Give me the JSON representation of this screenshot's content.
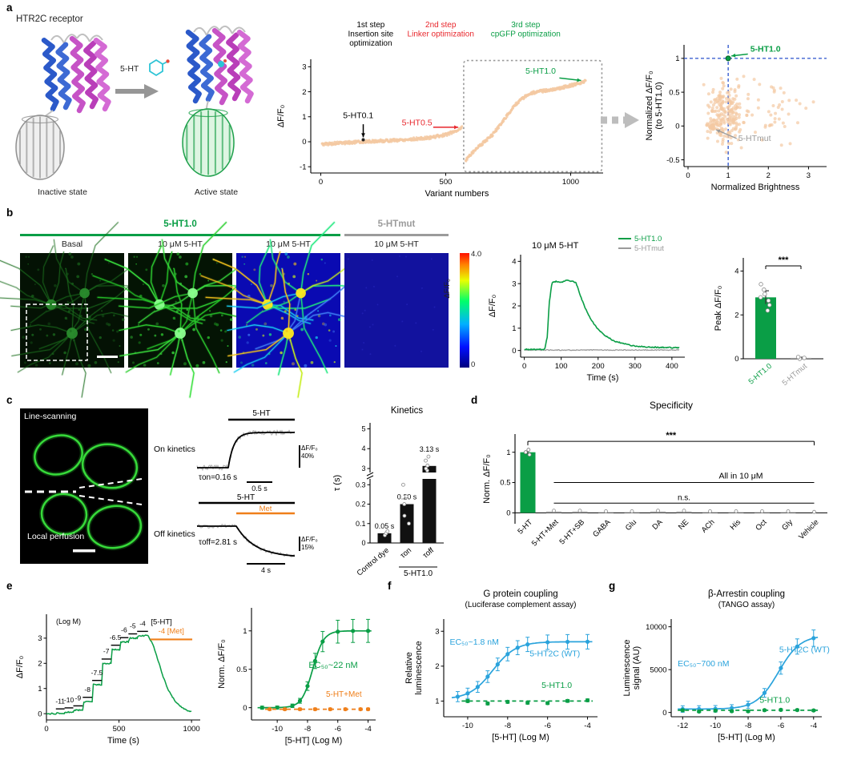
{
  "figure": {
    "panel_letters": {
      "a": "a",
      "b": "b",
      "c": "c",
      "d": "d",
      "e": "e",
      "f": "f",
      "g": "g"
    }
  },
  "panel_a": {
    "receptor_title": "HTR2C receptor",
    "ligand_label": "5-HT",
    "inactive_label": "Inactive state",
    "active_label": "Active state"
  },
  "panel_b": {
    "sensor_label": "5-HT1.0",
    "mut_label": "5-HTmut",
    "image_labels": [
      "Basal",
      "10 μM 5-HT",
      "10 μM 5-HT",
      "10 μM 5-HT"
    ],
    "colorbar": {
      "label": "ΔF/F₀",
      "max": "4.0",
      "min": "0"
    }
  },
  "panel_c": {
    "image_label_top": "Line-scanning",
    "image_label_bottom": "Local perfusion",
    "on_label": "On kinetics",
    "off_label": "Off kinetics",
    "on_bar_label": "5-HT",
    "off_bar_label": "5-HT",
    "met_bar_label": "Met",
    "tau_on": "τon=0.16 s",
    "tau_off": "τoff=2.81 s",
    "on_scale_v1": "ΔF/F₀",
    "on_scale_v2": "40%",
    "on_scale_h": "0.5 s",
    "off_scale_v1": "ΔF/F₀",
    "off_scale_v2": "15%",
    "off_scale_h": "4 s"
  },
  "chart_data": [
    {
      "id": "variant_screen",
      "type": "scatter",
      "xlabel": "Variant numbers",
      "ylabel": "ΔF/F₀",
      "xlim": [
        -40,
        1130
      ],
      "ylim": [
        -1.25,
        3.3
      ],
      "xticks": [
        0,
        500,
        1000
      ],
      "yticks": [
        -1,
        0,
        1,
        2,
        3
      ],
      "point_color": "#f3c9a2",
      "steps": [
        {
          "lines": [
            "1st step",
            "Insertion site",
            "optimization"
          ],
          "color": "#000000",
          "x": 200
        },
        {
          "lines": [
            "2nd step",
            "Linker optimization"
          ],
          "color": "#e8262c",
          "x": 480
        },
        {
          "lines": [
            "3rd step",
            "cpGFP optimization"
          ],
          "color": "#0a9e46",
          "x": 820
        }
      ],
      "segment1": [
        [
          5,
          -0.1
        ],
        [
          80,
          -0.05
        ],
        [
          170,
          0.0
        ],
        [
          300,
          0.06
        ],
        [
          420,
          0.14
        ],
        [
          500,
          0.28
        ],
        [
          545,
          0.45
        ],
        [
          565,
          0.58
        ]
      ],
      "segment2": [
        [
          580,
          -0.75
        ],
        [
          600,
          -0.5
        ],
        [
          625,
          -0.25
        ],
        [
          655,
          0.0
        ],
        [
          685,
          0.25
        ],
        [
          720,
          0.7
        ],
        [
          760,
          1.25
        ],
        [
          800,
          1.7
        ],
        [
          845,
          1.95
        ],
        [
          900,
          2.05
        ],
        [
          960,
          2.15
        ],
        [
          1020,
          2.3
        ],
        [
          1060,
          2.42
        ]
      ],
      "n1": 300,
      "n2": 320,
      "annotations": [
        {
          "text": "5-HT0.1",
          "color": "#000000",
          "tx": 150,
          "ty": 0.95,
          "arrow": [
            [
              170,
              0.7
            ],
            [
              170,
              0.18
            ]
          ],
          "dot": [
            170,
            0.08
          ]
        },
        {
          "text": "5-HT0.5",
          "color": "#e8262c",
          "tx": 385,
          "ty": 0.66,
          "arrow": [
            [
              450,
              0.58
            ],
            [
              550,
              0.58
            ]
          ]
        },
        {
          "text": "5-HT1.0",
          "color": "#0a9e46",
          "tx": 880,
          "ty": 2.72,
          "arrow": [
            [
              955,
              2.55
            ],
            [
              1042,
              2.45
            ]
          ]
        }
      ],
      "box": {
        "x0": 572,
        "x1": 1125,
        "y0": -1.2,
        "y1": 3.25
      }
    },
    {
      "id": "brightness_scatter",
      "type": "scatter",
      "xlabel": "Normalized Brightness",
      "ylabel": "Normalized ΔF/F₀\n(to 5-HT1.0)",
      "xlim": [
        -0.1,
        3.45
      ],
      "ylim": [
        -0.6,
        1.2
      ],
      "xticks": [
        0,
        1,
        2,
        3
      ],
      "yticks": [
        -0.5,
        0,
        0.5,
        1
      ],
      "point_color": "#f3c9a2",
      "clusters": [
        {
          "n": 190,
          "cx": 0.95,
          "cy": 0.18,
          "sx": 0.22,
          "sy": 0.2
        },
        {
          "n": 60,
          "cx": 1.7,
          "cy": 0.28,
          "sx": 0.55,
          "sy": 0.22
        },
        {
          "n": 30,
          "cx": 0.58,
          "cy": 0.0,
          "sx": 0.07,
          "sy": 0.04
        }
      ],
      "crosshair": {
        "x": 1,
        "y": 1,
        "color": "#2a52cc"
      },
      "sensor": {
        "x": 1.0,
        "y": 1.0,
        "label": "5-HT1.0",
        "color": "#0a9e46",
        "tx": 1.55,
        "ty": 1.1
      },
      "mut": {
        "x": 0.62,
        "y": -0.02,
        "label": "5-HTmut",
        "color": "#9b9b9b",
        "tx": 1.25,
        "ty": -0.22
      }
    },
    {
      "id": "trace_b",
      "type": "line",
      "title": "10 μM 5-HT",
      "xlabel": "Time (s)",
      "ylabel": "ΔF/F₀",
      "xlim": [
        -10,
        435
      ],
      "ylim": [
        -0.3,
        4.3
      ],
      "xticks": [
        0,
        100,
        200,
        300,
        400
      ],
      "yticks": [
        0,
        1,
        2,
        3,
        4
      ],
      "legend": [
        {
          "label": "5-HT1.0",
          "color": "#0a9e46"
        },
        {
          "label": "5-HTmut",
          "color": "#9b9b9b"
        }
      ],
      "green": [
        [
          0,
          0.05
        ],
        [
          55,
          0.05
        ],
        [
          62,
          0.6
        ],
        [
          68,
          2.2
        ],
        [
          75,
          3.05
        ],
        [
          85,
          3.1
        ],
        [
          100,
          3.05
        ],
        [
          115,
          3.15
        ],
        [
          130,
          3.1
        ],
        [
          140,
          3.05
        ],
        [
          150,
          2.55
        ],
        [
          165,
          1.9
        ],
        [
          180,
          1.4
        ],
        [
          200,
          0.95
        ],
        [
          220,
          0.65
        ],
        [
          245,
          0.42
        ],
        [
          270,
          0.3
        ],
        [
          300,
          0.2
        ],
        [
          340,
          0.15
        ],
        [
          420,
          0.12
        ]
      ],
      "gray_level": 0.02
    },
    {
      "id": "peak_bar",
      "type": "bar",
      "ylabel": "Peak ΔF/F₀",
      "ylim": [
        0,
        4.6
      ],
      "yticks": [
        0,
        2,
        4
      ],
      "sig": "***",
      "bars": [
        {
          "label": "5-HT1.0",
          "color": "#0a9e46",
          "value": 2.8,
          "err": 0.3,
          "points": [
            2.2,
            2.45,
            2.65,
            2.8,
            2.95,
            3.15,
            3.4
          ]
        },
        {
          "label": "5-HTmut",
          "color": "#9b9b9b",
          "value": 0.04,
          "err": 0.03,
          "points": [
            0.0,
            0.04,
            0.08
          ]
        }
      ]
    },
    {
      "id": "kinetics_bar",
      "type": "bar",
      "title": "Kinetics",
      "ylabel": "τ (s)",
      "upper": {
        "lim": [
          2.8,
          5.3
        ],
        "ticks": [
          3,
          4,
          5
        ]
      },
      "lower": {
        "lim": [
          0,
          0.33
        ],
        "ticks": [
          0,
          0.1,
          0.2,
          0.3
        ]
      },
      "bars": [
        {
          "label": "Control dye",
          "value": 0.05,
          "value_label": "0.05 s",
          "points": [
            0.04,
            0.05,
            0.06
          ]
        },
        {
          "label": "τon",
          "value": 0.2,
          "value_label": "0.20 s",
          "points": [
            0.1,
            0.14,
            0.2,
            0.24,
            0.3
          ]
        },
        {
          "label": "τoff",
          "value": 3.13,
          "value_label": "3.13 s",
          "points": [
            2.9,
            3.0,
            3.15,
            3.4,
            3.6
          ]
        }
      ],
      "group_label": "5-HT1.0"
    },
    {
      "id": "specificity",
      "type": "bar",
      "title": "Specificity",
      "ylabel": "Norm. ΔF/F₀",
      "ylim": [
        -0.18,
        1.3
      ],
      "yticks": [
        0,
        0.5,
        1
      ],
      "sig": "***",
      "bracket_label": "All in 10 μM",
      "ns_label": "n.s.",
      "bars": [
        {
          "label": "5-HT",
          "value": 1.0,
          "err": 0.04,
          "color": "#0a9e46"
        },
        {
          "label": "5-HT+Met",
          "value": 0.02,
          "err": 0.01,
          "color": "#9b9b9b"
        },
        {
          "label": "5-HT+SB",
          "value": 0.02,
          "err": 0.01,
          "color": "#9b9b9b"
        },
        {
          "label": "GABA",
          "value": 0.01,
          "err": 0.01,
          "color": "#9b9b9b"
        },
        {
          "label": "Glu",
          "value": 0.01,
          "err": 0.01,
          "color": "#9b9b9b"
        },
        {
          "label": "DA",
          "value": 0.02,
          "err": 0.01,
          "color": "#9b9b9b"
        },
        {
          "label": "NE",
          "value": 0.02,
          "err": 0.01,
          "color": "#9b9b9b"
        },
        {
          "label": "ACh",
          "value": 0.01,
          "err": 0.01,
          "color": "#9b9b9b"
        },
        {
          "label": "His",
          "value": 0.01,
          "err": 0.01,
          "color": "#9b9b9b"
        },
        {
          "label": "Oct",
          "value": 0.01,
          "err": 0.01,
          "color": "#9b9b9b"
        },
        {
          "label": "Gly",
          "value": 0.01,
          "err": 0.01,
          "color": "#9b9b9b"
        },
        {
          "label": "Vehicle",
          "value": 0.0,
          "err": 0.01,
          "color": "#9b9b9b"
        }
      ]
    },
    {
      "id": "trace_e",
      "type": "line",
      "xlabel": "Time (s)",
      "ylabel": "ΔF/F₀",
      "xlim": [
        0,
        1060
      ],
      "ylim": [
        -0.25,
        3.95
      ],
      "xticks": [
        0,
        500,
        1000
      ],
      "yticks": [
        0,
        1,
        2,
        3
      ],
      "logm_label": "(Log M)",
      "line_color": "#0a9e46",
      "steps": [
        {
          "label": "-11",
          "t0": 65,
          "t1": 125,
          "y": 0.02
        },
        {
          "label": "-10",
          "t0": 125,
          "t1": 185,
          "y": 0.06
        },
        {
          "label": "-9",
          "t0": 185,
          "t1": 250,
          "y": 0.14
        },
        {
          "label": "-8",
          "t0": 250,
          "t1": 315,
          "y": 0.48
        },
        {
          "label": "-7.5",
          "t0": 315,
          "t1": 380,
          "y": 1.15
        },
        {
          "label": "-7",
          "t0": 380,
          "t1": 445,
          "y": 2.0
        },
        {
          "label": "-6.5",
          "t0": 445,
          "t1": 505,
          "y": 2.55
        },
        {
          "label": "-6",
          "t0": 505,
          "t1": 565,
          "y": 2.85
        },
        {
          "label": "-5",
          "t0": 565,
          "t1": 625,
          "y": 3.0
        },
        {
          "label": "-4",
          "t0": 625,
          "t1": 700,
          "y": 3.1
        }
      ],
      "ht_label": "[5-HT]",
      "met": {
        "label": "-4 [Met]",
        "color": "#ef7f1a",
        "t0": 715,
        "t1": 1005,
        "bar_y": 2.95
      },
      "decay": [
        [
          700,
          3.1
        ],
        [
          735,
          2.75
        ],
        [
          770,
          2.1
        ],
        [
          805,
          1.45
        ],
        [
          840,
          0.95
        ],
        [
          880,
          0.55
        ],
        [
          920,
          0.3
        ],
        [
          960,
          0.15
        ],
        [
          1005,
          0.07
        ]
      ]
    },
    {
      "id": "dose_e",
      "type": "line",
      "xlabel": "[5-HT] (Log M)",
      "ylabel": "Norm. ΔF/F₀",
      "xlim": [
        -11.7,
        -3.5
      ],
      "ylim": [
        -0.16,
        1.3
      ],
      "xticks": [
        -10,
        -8,
        -6,
        -4
      ],
      "yticks": [
        0,
        0.5,
        1
      ],
      "series": [
        {
          "name": "5-HT",
          "color": "#0a9e46",
          "kind": "sigmoid",
          "bottom": 0,
          "top": 1.0,
          "ec50_log": -7.66,
          "hill": 1.2,
          "points_x": [
            -11,
            -10,
            -9,
            -8.5,
            -8,
            -7.5,
            -7,
            -6,
            -5,
            -4
          ],
          "err_base": 0.02,
          "err_scale": 0.13,
          "label": {
            "text": "EC₅₀~22 nM",
            "x": -6.3,
            "y": 0.52,
            "anchor": "middle",
            "fs": 11
          }
        },
        {
          "name": "5-HT+Met",
          "color": "#ef7f1a",
          "kind": "flat",
          "level": -0.02,
          "dashed": true,
          "points_x": [
            -10.5,
            -9.5,
            -8.5,
            -7.5,
            -6.5,
            -5.5,
            -4.5,
            -4
          ],
          "err_base": 0.015,
          "err_scale": 0,
          "label": {
            "text": "5-HT+Met",
            "x": -5.6,
            "y": 0.14,
            "anchor": "middle",
            "fs": 10
          }
        }
      ]
    },
    {
      "id": "gprotein",
      "type": "line",
      "title1": "G protein coupling",
      "title2": "(Luciferase complement assay)",
      "xlabel": "[5-HT] (Log M)",
      "ylabel": "Relative\nluminescence",
      "xlim": [
        -11.2,
        -3.5
      ],
      "ylim": [
        0.55,
        3.35
      ],
      "xticks": [
        -10,
        -8,
        -6,
        -4
      ],
      "yticks": [
        1,
        2,
        3
      ],
      "series": [
        {
          "name": "5-HT2C (WT)",
          "color": "#2aa3dc",
          "kind": "sigmoid",
          "bottom": 1.05,
          "top": 2.7,
          "ec50_log": -8.75,
          "hill": 0.75,
          "points_x": [
            -10.5,
            -10,
            -9.5,
            -9,
            -8.5,
            -8,
            -7.5,
            -7,
            -6,
            -5,
            -4
          ],
          "err_base": 0.1,
          "err_scale": 0.04,
          "label": {
            "text": "EC₅₀~1.8 nM",
            "x": -10.9,
            "y": 2.62,
            "anchor": "start",
            "fs": 10.5
          },
          "label2": {
            "text": "5-HT2C (WT)",
            "x": -6.9,
            "y": 2.28,
            "anchor": "start",
            "fs": 10.5
          }
        },
        {
          "name": "5-HT1.0",
          "color": "#0a9e46",
          "kind": "flat",
          "level": 1.0,
          "dashed": true,
          "jitter": 0.07,
          "points_x": [
            -10,
            -9,
            -8,
            -7,
            -6,
            -5,
            -4
          ],
          "err_base": 0.04,
          "err_scale": 0,
          "label": {
            "text": "5-HT1.0",
            "x": -6.3,
            "y": 1.38,
            "anchor": "start",
            "fs": 10.5
          }
        }
      ]
    },
    {
      "id": "tango",
      "type": "line",
      "title1": "β-Arrestin coupling",
      "title2": "(TANGO assay)",
      "xlabel": "[5-HT] (Log M)",
      "ylabel": "Luminescence\nsignal (AU)",
      "xlim": [
        -12.7,
        -3.5
      ],
      "ylim": [
        -500,
        10900
      ],
      "xticks": [
        -12,
        -10,
        -8,
        -6,
        -4
      ],
      "yticks": [
        0,
        5000,
        10000
      ],
      "series": [
        {
          "name": "5-HT2C (WT)",
          "color": "#2aa3dc",
          "kind": "sigmoid",
          "bottom": 400,
          "top": 9000,
          "ec50_log": -6.15,
          "hill": 0.65,
          "points_x": [
            -12,
            -11,
            -10,
            -9,
            -8,
            -7,
            -6,
            -5,
            -4
          ],
          "err_base": 350,
          "err_scale": 0.07,
          "label": {
            "text": "EC₅₀~700 nM",
            "x": -12.3,
            "y": 5400,
            "anchor": "start",
            "fs": 10.5
          },
          "label2": {
            "text": "5-HT2C (WT)",
            "x": -6.1,
            "y": 7000,
            "anchor": "start",
            "fs": 10.5
          }
        },
        {
          "name": "5-HT1.0",
          "color": "#0a9e46",
          "kind": "flat",
          "level": 260,
          "dashed": true,
          "jitter": 150,
          "points_x": [
            -12,
            -11,
            -10,
            -9,
            -8,
            -7,
            -6,
            -5,
            -4
          ],
          "err_base": 120,
          "err_scale": 0,
          "label": {
            "text": "5-HT1.0",
            "x": -7.3,
            "y": 1150,
            "anchor": "start",
            "fs": 10.5
          }
        }
      ]
    }
  ]
}
